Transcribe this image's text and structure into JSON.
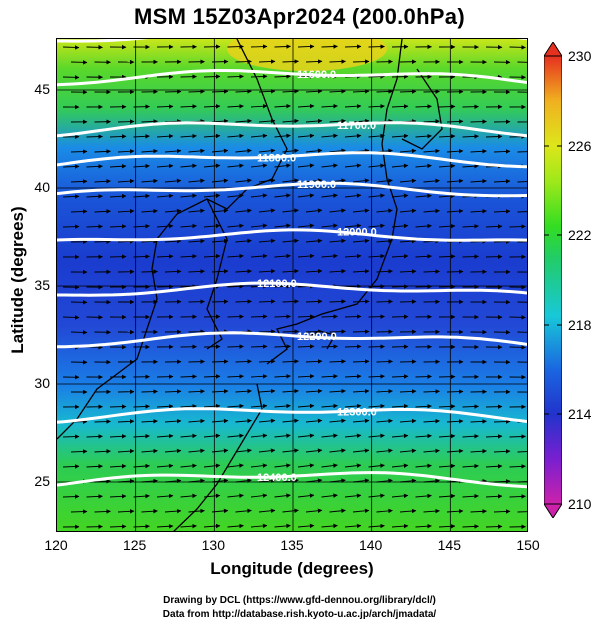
{
  "title": "MSM 15Z03Apr2024 (200.0hPa)",
  "axes": {
    "xlabel": "Longitude (degrees)",
    "ylabel": "Latitude  (degrees)",
    "xticks": [
      "120",
      "125",
      "130",
      "135",
      "140",
      "145",
      "150"
    ],
    "yticks": [
      "45",
      "40",
      "35",
      "30",
      "25"
    ],
    "xrange": [
      120,
      150
    ],
    "yrange": [
      22.4,
      47.6
    ]
  },
  "colorbar": {
    "ticks": [
      "230",
      "226",
      "222",
      "218",
      "214",
      "210"
    ],
    "range": [
      210,
      230
    ],
    "colors": [
      "#cc22aa",
      "#7a1fd0",
      "#2233cc",
      "#1a66e0",
      "#18c8d8",
      "#22cc66",
      "#33dd22",
      "#9ee81a",
      "#dde61a",
      "#f0b020",
      "#e63020"
    ]
  },
  "contours": [
    {
      "label": "11800.0",
      "lat": 47.5
    },
    {
      "label": "11600.0",
      "lat": 45.4
    },
    {
      "label": "11700.0",
      "lat": 42.8
    },
    {
      "label": "11800.0",
      "lat": 41.2
    },
    {
      "label": "11900.0",
      "lat": 39.6
    },
    {
      "label": "12000.0",
      "lat": 37.2
    },
    {
      "label": "12100.0",
      "lat": 34.5
    },
    {
      "label": "12200.0",
      "lat": 32.0
    },
    {
      "label": "12300.0",
      "lat": 28.2
    },
    {
      "label": "12400.0",
      "lat": 24.9
    }
  ],
  "credits": [
    "Drawing by DCL (https://www.gfd-dennou.org/library/dcl/)",
    "Data from http://database.rish.kyoto-u.ac.jp/arch/jmadata/"
  ]
}
